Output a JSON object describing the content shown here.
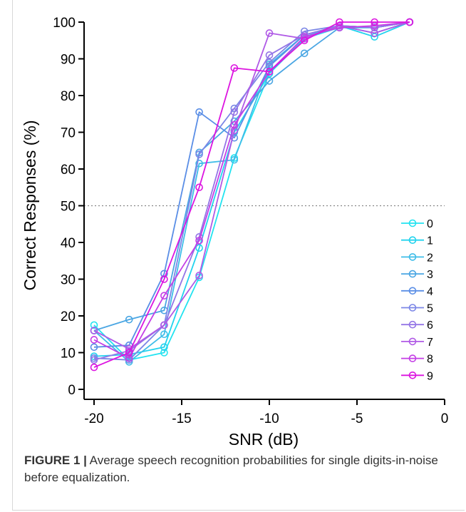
{
  "caption": {
    "label": "FIGURE 1 |",
    "text": " Average speech recognition probabilities for single digits-in-noise before equalization."
  },
  "chart_data": {
    "type": "line",
    "title": "",
    "xlabel": "SNR (dB)",
    "ylabel": "Correct Responses (%)",
    "xlim": [
      -20,
      0
    ],
    "ylim": [
      0,
      100
    ],
    "xticks": [
      -20,
      -15,
      -10,
      -5,
      0
    ],
    "yticks": [
      0,
      10,
      20,
      30,
      40,
      50,
      60,
      70,
      80,
      90,
      100
    ],
    "reference_line": {
      "y": 50,
      "style": "dotted",
      "color": "#888888"
    },
    "grid": false,
    "legend_position": "bottom-right",
    "x": [
      -20,
      -18,
      -16,
      -14,
      -12,
      -10,
      -8,
      -6,
      -4,
      -2
    ],
    "series": [
      {
        "name": "0",
        "color": "#22e3f0",
        "values": [
          17.5,
          8,
          10,
          30.5,
          63,
          86,
          95.5,
          98.5,
          98.5,
          100
        ]
      },
      {
        "name": "1",
        "color": "#22d3ee",
        "values": [
          9,
          9.5,
          11.5,
          38.5,
          70,
          86,
          96,
          99,
          96,
          100
        ]
      },
      {
        "name": "2",
        "color": "#3fbde8",
        "values": [
          16,
          7.5,
          15,
          61.5,
          62.5,
          88.5,
          96.5,
          99,
          97,
          100
        ]
      },
      {
        "name": "3",
        "color": "#4aa6e3",
        "values": [
          16,
          19,
          21.5,
          64.5,
          73,
          84,
          91.5,
          98.5,
          98.5,
          100
        ]
      },
      {
        "name": "4",
        "color": "#5a8ee6",
        "values": [
          11.5,
          12,
          31.5,
          75.5,
          68.5,
          88,
          96.5,
          99,
          98.5,
          100
        ]
      },
      {
        "name": "5",
        "color": "#7b86e6",
        "values": [
          8.5,
          8,
          17.5,
          64,
          76.5,
          89,
          97.5,
          99,
          98.5,
          100
        ]
      },
      {
        "name": "6",
        "color": "#9475e6",
        "values": [
          8,
          10.5,
          17.5,
          41.5,
          75.5,
          91,
          96.5,
          99,
          98.5,
          100
        ]
      },
      {
        "name": "7",
        "color": "#b05ae6",
        "values": [
          16,
          11,
          17.5,
          31,
          70.5,
          97,
          95.5,
          99,
          97,
          100
        ]
      },
      {
        "name": "8",
        "color": "#c43ee6",
        "values": [
          13.5,
          8.5,
          25.5,
          40.5,
          72,
          86.5,
          96,
          98.5,
          99,
          100
        ]
      },
      {
        "name": "9",
        "color": "#dc14e0",
        "values": [
          6,
          10,
          30,
          55,
          87.5,
          86.5,
          95,
          100,
          100,
          100
        ]
      }
    ]
  }
}
